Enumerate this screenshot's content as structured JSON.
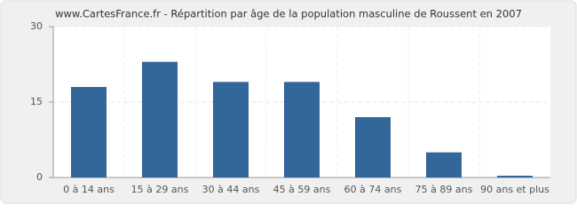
{
  "chart_data": {
    "type": "bar",
    "title": "www.CartesFrance.fr - Répartition par âge de la population masculine de Roussent en 2007",
    "categories": [
      "0 à 14 ans",
      "15 à 29 ans",
      "30 à 44 ans",
      "45 à 59 ans",
      "60 à 74 ans",
      "75 à 89 ans",
      "90 ans et plus"
    ],
    "values": [
      18,
      23,
      19,
      19,
      12,
      5,
      0
    ],
    "color": "#336699",
    "ylim": [
      0,
      30
    ],
    "yticks": [
      0,
      15,
      30
    ],
    "grid": true
  }
}
